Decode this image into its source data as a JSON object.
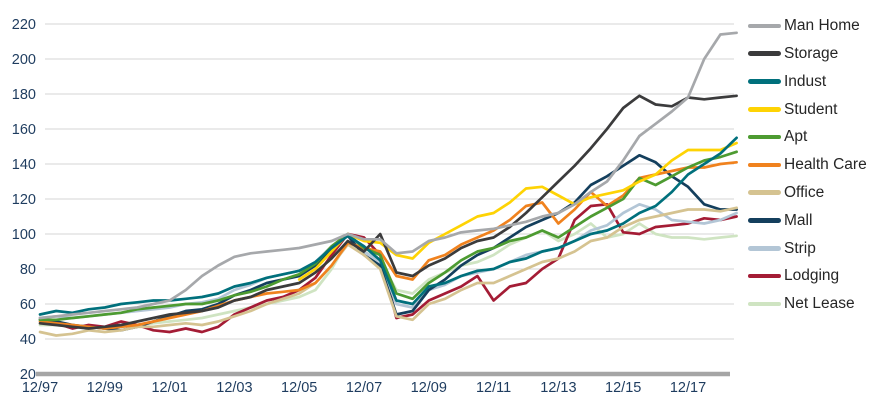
{
  "chart_data": {
    "type": "line",
    "title": "",
    "xlabel": "",
    "ylabel": "",
    "x_tick_labels": [
      "12/97",
      "12/99",
      "12/01",
      "12/03",
      "12/05",
      "12/07",
      "12/09",
      "12/11",
      "12/13",
      "12/15",
      "12/17"
    ],
    "y_ticks": [
      220,
      200,
      180,
      160,
      140,
      120,
      100,
      80,
      60,
      40,
      20
    ],
    "ylim": [
      20,
      220
    ],
    "x_sampling": "half-yearly index values from Dec-1997 (index 0) to Jun-2019 (index 43); Student series begins Dec-2005 (index 16)",
    "grid": "horizontal",
    "legend_position": "right",
    "style": {
      "axis_label_color": "#1e3c5f",
      "gridline_color": "#d6d6d6",
      "baseline_color": "#a5a5a5",
      "background": "#ffffff"
    },
    "series": [
      {
        "name": "Man Home",
        "color": "#a6a8ab",
        "start_index": 0,
        "values": [
          52,
          53,
          54,
          55,
          56,
          57,
          58,
          60,
          62,
          68,
          76,
          82,
          87,
          89,
          90,
          91,
          92,
          94,
          96,
          100,
          97,
          97,
          89,
          90,
          96,
          98,
          101,
          102,
          103,
          105,
          107,
          110,
          112,
          117,
          124,
          130,
          142,
          156,
          163,
          170,
          178,
          200,
          214,
          215
        ]
      },
      {
        "name": "Storage",
        "color": "#3b3b3c",
        "start_index": 0,
        "values": [
          49,
          48,
          47,
          46,
          47,
          48,
          50,
          52,
          54,
          55,
          56,
          58,
          62,
          64,
          68,
          70,
          72,
          78,
          86,
          96,
          90,
          100,
          78,
          76,
          82,
          86,
          92,
          96,
          98,
          104,
          112,
          121,
          130,
          139,
          149,
          160,
          172,
          179,
          174,
          173,
          178,
          177,
          178,
          179
        ]
      },
      {
        "name": "Indust",
        "color": "#00707c",
        "start_index": 0,
        "values": [
          54,
          56,
          55,
          57,
          58,
          60,
          61,
          62,
          62,
          63,
          64,
          66,
          70,
          72,
          75,
          77,
          79,
          84,
          92,
          99,
          93,
          85,
          62,
          60,
          70,
          72,
          76,
          79,
          80,
          84,
          86,
          90,
          92,
          96,
          100,
          102,
          106,
          112,
          116,
          124,
          134,
          140,
          146,
          155
        ]
      },
      {
        "name": "Student",
        "color": "#fed304",
        "start_index": 16,
        "values": [
          74,
          80,
          90,
          100,
          96,
          95,
          88,
          86,
          95,
          100,
          105,
          110,
          112,
          118,
          126,
          127,
          122,
          117,
          121,
          123,
          125,
          130,
          134,
          142,
          148,
          148,
          148,
          152
        ]
      },
      {
        "name": "Apt",
        "color": "#4d9b31",
        "start_index": 0,
        "values": [
          51,
          51,
          52,
          53,
          54,
          55,
          57,
          58,
          59,
          60,
          60,
          62,
          65,
          67,
          70,
          74,
          77,
          83,
          93,
          100,
          92,
          88,
          66,
          63,
          72,
          78,
          85,
          90,
          92,
          96,
          98,
          102,
          98,
          104,
          110,
          115,
          120,
          132,
          128,
          133,
          138,
          142,
          144,
          147
        ]
      },
      {
        "name": "Health Care",
        "color": "#f0821e",
        "start_index": 0,
        "values": [
          50,
          49,
          48,
          47,
          46,
          47,
          48,
          50,
          52,
          54,
          56,
          59,
          62,
          64,
          66,
          67,
          68,
          72,
          82,
          95,
          92,
          90,
          76,
          74,
          85,
          88,
          94,
          98,
          102,
          108,
          116,
          118,
          106,
          114,
          124,
          116,
          122,
          132,
          134,
          136,
          138,
          138,
          140,
          141
        ]
      },
      {
        "name": "Office",
        "color": "#d5c391",
        "start_index": 0,
        "values": [
          44,
          42,
          43,
          45,
          44,
          45,
          47,
          47,
          48,
          49,
          48,
          50,
          53,
          56,
          60,
          63,
          66,
          72,
          82,
          94,
          88,
          80,
          53,
          51,
          60,
          63,
          68,
          72,
          72,
          76,
          80,
          84,
          86,
          90,
          96,
          98,
          104,
          108,
          110,
          112,
          114,
          114,
          113,
          115
        ]
      },
      {
        "name": "Mall",
        "color": "#143f5d",
        "start_index": 0,
        "values": [
          51,
          50,
          48,
          47,
          46,
          45,
          47,
          50,
          53,
          56,
          57,
          60,
          65,
          68,
          72,
          74,
          76,
          82,
          92,
          99,
          88,
          82,
          54,
          56,
          68,
          74,
          82,
          88,
          92,
          98,
          104,
          108,
          112,
          118,
          128,
          133,
          139,
          145,
          141,
          133,
          127,
          117,
          114,
          114
        ]
      },
      {
        "name": "Strip",
        "color": "#b3c6d6",
        "start_index": 0,
        "values": [
          52,
          53,
          52,
          53,
          54,
          55,
          56,
          57,
          58,
          60,
          61,
          63,
          68,
          71,
          75,
          77,
          79,
          84,
          93,
          100,
          90,
          84,
          60,
          58,
          68,
          71,
          76,
          78,
          80,
          84,
          88,
          90,
          92,
          96,
          102,
          105,
          112,
          117,
          114,
          108,
          107,
          106,
          108,
          112
        ]
      },
      {
        "name": "Lodging",
        "color": "#a41c35",
        "start_index": 0,
        "values": [
          52,
          49,
          46,
          48,
          47,
          50,
          48,
          45,
          44,
          46,
          44,
          47,
          54,
          58,
          62,
          64,
          68,
          75,
          88,
          100,
          98,
          88,
          52,
          54,
          62,
          66,
          70,
          76,
          62,
          70,
          72,
          80,
          86,
          108,
          116,
          117,
          101,
          100,
          104,
          105,
          106,
          109,
          108,
          110
        ]
      },
      {
        "name": "Net Lease",
        "color": "#cfe4c2",
        "start_index": 0,
        "values": [
          48,
          48,
          47,
          47,
          46,
          47,
          48,
          49,
          50,
          51,
          52,
          54,
          56,
          58,
          60,
          62,
          64,
          68,
          80,
          96,
          90,
          85,
          68,
          66,
          74,
          78,
          82,
          84,
          88,
          94,
          98,
          102,
          96,
          100,
          106,
          98,
          100,
          106,
          100,
          98,
          98,
          97,
          98,
          99
        ]
      }
    ]
  }
}
